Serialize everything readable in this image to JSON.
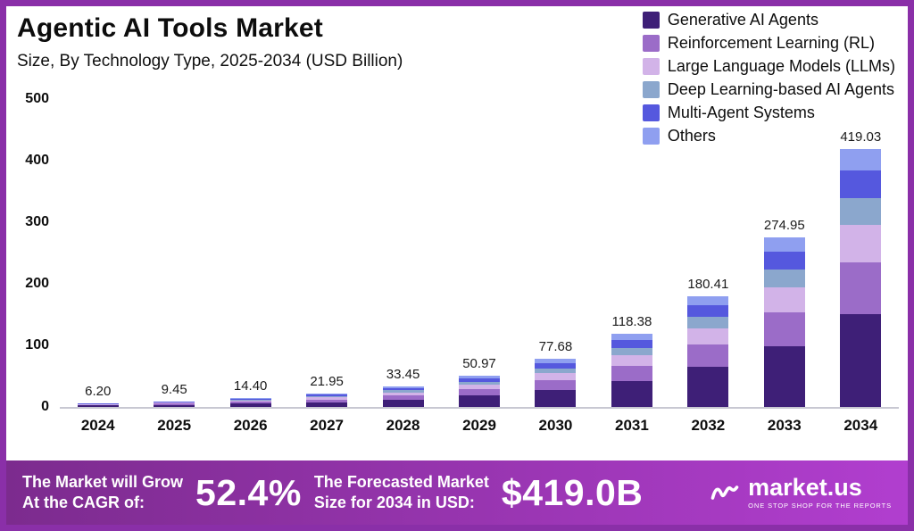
{
  "header": {
    "title": "Agentic AI Tools Market",
    "subtitle": "Size, By Technology Type, 2025-2034 (USD Billion)"
  },
  "colors": {
    "frame_border": "#8a2fa8",
    "banner_from": "#7c2b8e",
    "banner_to": "#b13ecf",
    "axis_line": "#c8c8d2"
  },
  "legend": {
    "items": [
      {
        "label": "Generative AI Agents",
        "color": "#3e1f77"
      },
      {
        "label": "Reinforcement Learning (RL)",
        "color": "#9b6cc8"
      },
      {
        "label": "Large Language Models (LLMs)",
        "color": "#d2b3e8"
      },
      {
        "label": "Deep Learning-based AI Agents",
        "color": "#8ba7cd"
      },
      {
        "label": "Multi-Agent Systems",
        "color": "#5558de"
      },
      {
        "label": "Others",
        "color": "#8f9ff0"
      }
    ]
  },
  "chart_data": {
    "type": "bar",
    "stacked": true,
    "title": "Agentic AI Tools Market",
    "subtitle": "Size, By Technology Type, 2025-2034 (USD Billion)",
    "xlabel": "",
    "ylabel": "",
    "ylim": [
      0,
      500
    ],
    "yticks": [
      0,
      100,
      200,
      300,
      400,
      500
    ],
    "grid": false,
    "legend_position": "top-right",
    "categories": [
      "2024",
      "2025",
      "2026",
      "2027",
      "2028",
      "2029",
      "2030",
      "2031",
      "2032",
      "2033",
      "2034"
    ],
    "totals": [
      6.2,
      9.45,
      14.4,
      21.95,
      33.45,
      50.97,
      77.68,
      118.38,
      180.41,
      274.95,
      419.03
    ],
    "series": [
      {
        "name": "Generative AI Agents",
        "color": "#3e1f77",
        "values": [
          2.23,
          3.4,
          5.18,
          7.9,
          12.04,
          18.35,
          27.96,
          42.62,
          64.95,
          98.98,
          150.85
        ]
      },
      {
        "name": "Reinforcement Learning (RL)",
        "color": "#9b6cc8",
        "values": [
          1.24,
          1.89,
          2.88,
          4.39,
          6.69,
          10.19,
          15.54,
          23.68,
          36.08,
          54.99,
          83.81
        ]
      },
      {
        "name": "Large Language Models (LLMs)",
        "color": "#d2b3e8",
        "values": [
          0.9,
          1.37,
          2.09,
          3.18,
          4.85,
          7.39,
          11.26,
          17.17,
          26.16,
          39.87,
          60.76
        ]
      },
      {
        "name": "Deep Learning-based AI Agents",
        "color": "#8ba7cd",
        "values": [
          0.65,
          0.99,
          1.51,
          2.3,
          3.51,
          5.35,
          8.16,
          12.43,
          18.94,
          28.87,
          44.0
        ]
      },
      {
        "name": "Multi-Agent Systems",
        "color": "#5558de",
        "values": [
          0.65,
          0.99,
          1.51,
          2.3,
          3.51,
          5.35,
          8.16,
          12.43,
          18.94,
          28.87,
          44.0
        ]
      },
      {
        "name": "Others",
        "color": "#8f9ff0",
        "values": [
          0.53,
          0.8,
          1.22,
          1.87,
          2.84,
          4.33,
          6.6,
          10.06,
          15.33,
          23.37,
          35.62
        ]
      }
    ]
  },
  "banner": {
    "cagr_line1": "The Market will Grow",
    "cagr_line2": "At the CAGR of:",
    "cagr_value": "52.4%",
    "forecast_line1": "The Forecasted Market",
    "forecast_line2": "Size for 2034 in USD:",
    "forecast_value": "$419.0B",
    "brand": "market.us",
    "brand_tagline": "ONE STOP SHOP FOR THE REPORTS"
  }
}
